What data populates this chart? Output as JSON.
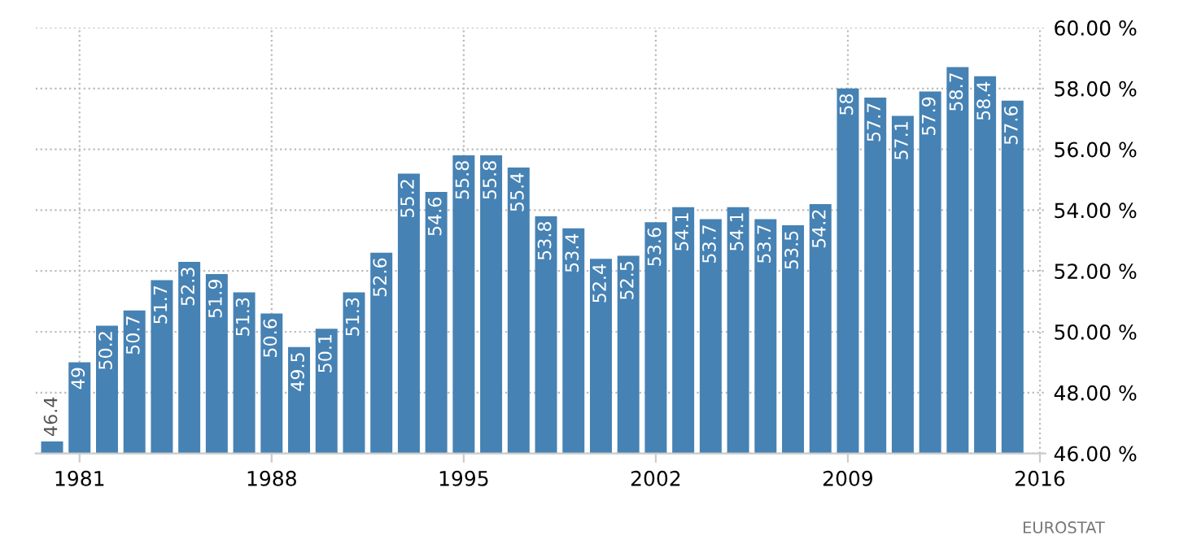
{
  "chart_data": {
    "type": "bar",
    "x": [
      1980,
      1981,
      1982,
      1983,
      1984,
      1985,
      1986,
      1987,
      1988,
      1989,
      1990,
      1991,
      1992,
      1993,
      1994,
      1995,
      1996,
      1997,
      1998,
      1999,
      2000,
      2001,
      2002,
      2003,
      2004,
      2005,
      2006,
      2007,
      2008,
      2009,
      2010,
      2011,
      2012,
      2013,
      2014,
      2015
    ],
    "values": [
      46.4,
      49,
      50.2,
      50.7,
      51.7,
      52.3,
      51.9,
      51.3,
      50.6,
      49.5,
      50.1,
      51.3,
      52.6,
      55.2,
      54.6,
      55.8,
      55.8,
      55.4,
      53.8,
      53.4,
      52.4,
      52.5,
      53.6,
      54.1,
      53.7,
      54.1,
      53.7,
      53.5,
      54.2,
      58,
      57.7,
      57.1,
      57.9,
      58.7,
      58.4,
      57.6
    ],
    "color": "#4682b4",
    "data_labels": true,
    "xlim": [
      1979.4,
      2016.2
    ],
    "xticks": [
      1981,
      1988,
      1995,
      2002,
      2009,
      2016
    ],
    "ylim": [
      46,
      60
    ],
    "yticks": [
      {
        "value": 46,
        "label": "46.00 %"
      },
      {
        "value": 48,
        "label": "48.00 %"
      },
      {
        "value": 50,
        "label": "50.00 %"
      },
      {
        "value": 52,
        "label": "52.00 %"
      },
      {
        "value": 54,
        "label": "54.00 %"
      },
      {
        "value": 56,
        "label": "56.00 %"
      },
      {
        "value": 58,
        "label": "58.00 %"
      },
      {
        "value": 60,
        "label": "60.00 %"
      }
    ],
    "grid": true,
    "annotations": [
      "EUROSTAT"
    ]
  }
}
